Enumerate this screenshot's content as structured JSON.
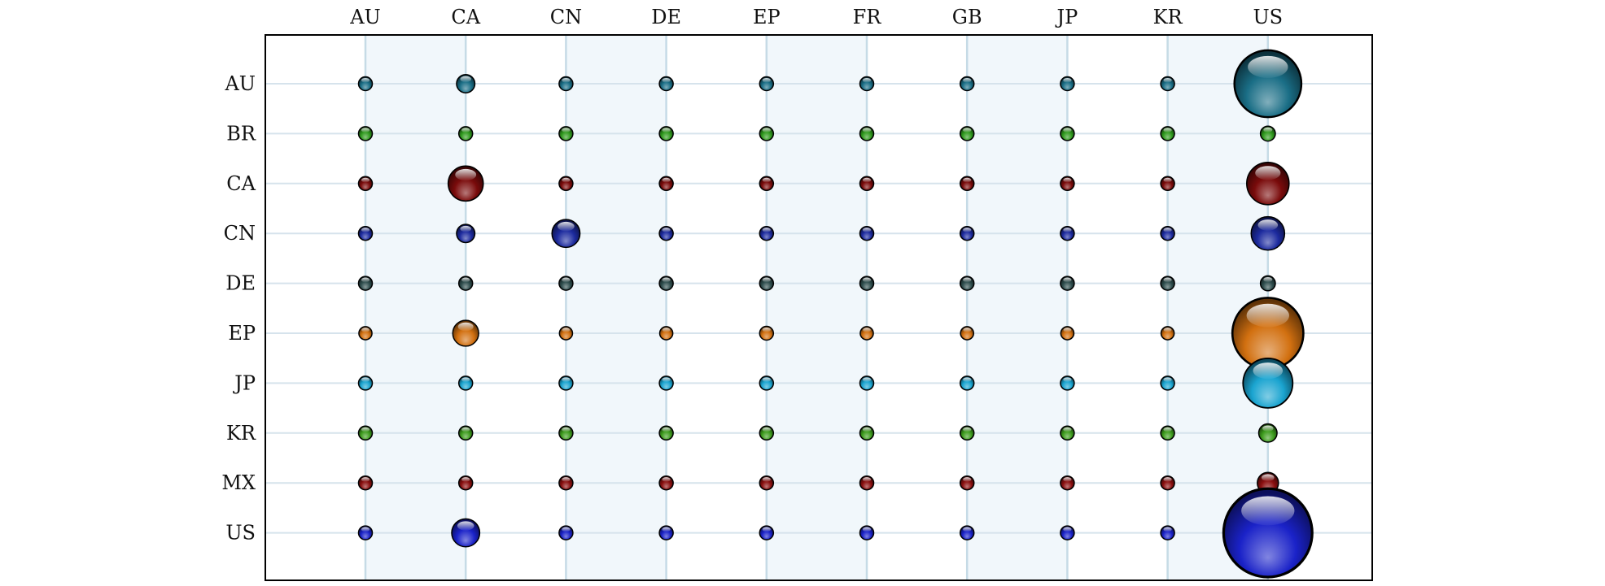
{
  "chart_data": {
    "type": "scatter",
    "title": "",
    "xlabel": "",
    "ylabel": "",
    "x_categories": [
      "AU",
      "CA",
      "CN",
      "DE",
      "EP",
      "FR",
      "GB",
      "JP",
      "KR",
      "US"
    ],
    "y_categories": [
      "AU",
      "BR",
      "CA",
      "CN",
      "DE",
      "EP",
      "JP",
      "KR",
      "MX",
      "US"
    ],
    "x_axis_position": "top",
    "grid": true,
    "legend": "none",
    "series": [
      {
        "row": "AU",
        "color": "#1a6e86",
        "values": [
          1,
          3,
          1,
          1,
          1,
          1,
          1,
          1,
          1,
          40
        ]
      },
      {
        "row": "BR",
        "color": "#2f9a1d",
        "values": [
          1.2,
          1,
          1.2,
          1.2,
          1.2,
          1.2,
          1.2,
          1.2,
          1.2,
          2
        ]
      },
      {
        "row": "CA",
        "color": "#7a0b0b",
        "values": [
          1.2,
          11,
          1,
          1,
          1,
          1,
          1,
          1,
          1,
          16
        ]
      },
      {
        "row": "CN",
        "color": "#1c2a9e",
        "values": [
          1.2,
          3,
          7,
          1,
          1,
          1,
          1,
          1,
          1,
          10
        ]
      },
      {
        "row": "DE",
        "color": "#2e4d4d",
        "values": [
          1.2,
          1,
          1,
          1,
          1,
          1,
          1,
          1,
          1,
          2
        ]
      },
      {
        "row": "EP",
        "color": "#d27010",
        "values": [
          0.9,
          6,
          0.9,
          0.9,
          1.2,
          0.9,
          0.9,
          0.9,
          0.9,
          45
        ]
      },
      {
        "row": "JP",
        "color": "#1aa4d0",
        "values": [
          1,
          1.2,
          1,
          1,
          1,
          1,
          1,
          1.2,
          1,
          22
        ]
      },
      {
        "row": "KR",
        "color": "#3d9c1d",
        "values": [
          1.2,
          1.2,
          1.2,
          1.2,
          1.2,
          1.2,
          1.2,
          1.2,
          1.2,
          3
        ]
      },
      {
        "row": "MX",
        "color": "#8a0f0f",
        "values": [
          1.2,
          1,
          1.2,
          1.2,
          1.2,
          1.2,
          1.2,
          1,
          1,
          4
        ]
      },
      {
        "row": "US",
        "color": "#1a22c8",
        "values": [
          1,
          7,
          1,
          1,
          1,
          1,
          1,
          1,
          1,
          70
        ]
      }
    ]
  }
}
